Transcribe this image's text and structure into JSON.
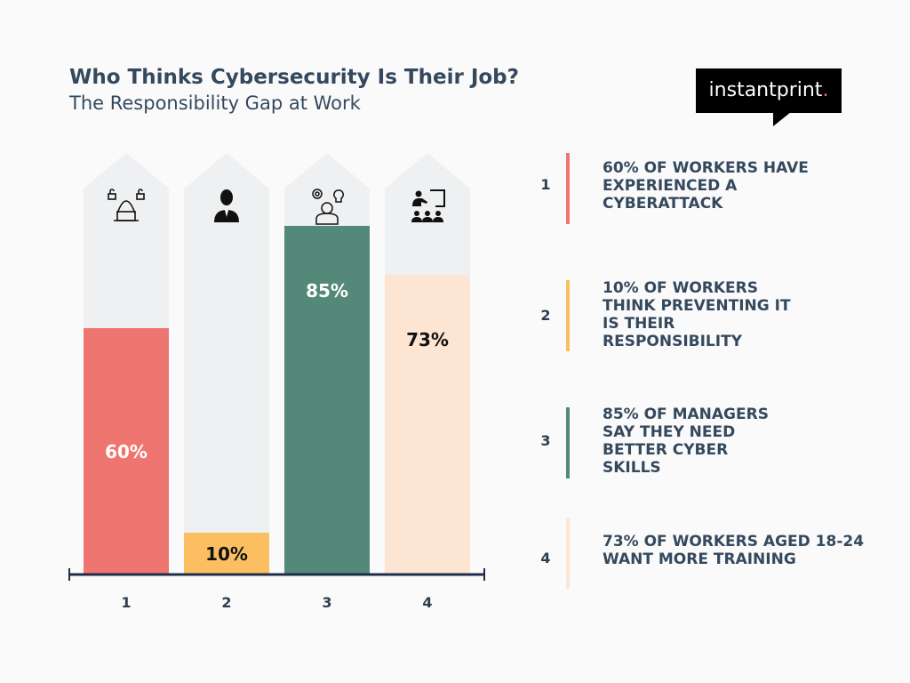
{
  "title": "Who Thinks Cybersecurity Is Their Job?",
  "subtitle": "The Responsibility Gap at Work",
  "logo": "instantprint.",
  "chart_data": {
    "type": "bar",
    "categories": [
      "1",
      "2",
      "3",
      "4"
    ],
    "values": [
      60,
      10,
      85,
      73
    ],
    "value_labels": [
      "60%",
      "10%",
      "85%",
      "73%"
    ],
    "colors": [
      "#ef7670",
      "#fbbf62",
      "#548878",
      "#fde5d3"
    ],
    "track_color": "#eff0f2",
    "icons": [
      "hacker-icon",
      "businessman-icon",
      "idea-gears-person-icon",
      "teacher-class-icon"
    ],
    "ylim": [
      0,
      100
    ],
    "grid": false
  },
  "legend": [
    {
      "num": "1",
      "text": "60% of workers have experienced a cyberattack",
      "color": "#ef7670"
    },
    {
      "num": "2",
      "text": "10% of workers think preventing it is their responsibility",
      "color": "#fbbf62"
    },
    {
      "num": "3",
      "text": "85% of managers say they need better cyber skills",
      "color": "#548878"
    },
    {
      "num": "4",
      "text": "73% of workers aged 18-24 want more training",
      "color": "#fde5d3"
    }
  ]
}
